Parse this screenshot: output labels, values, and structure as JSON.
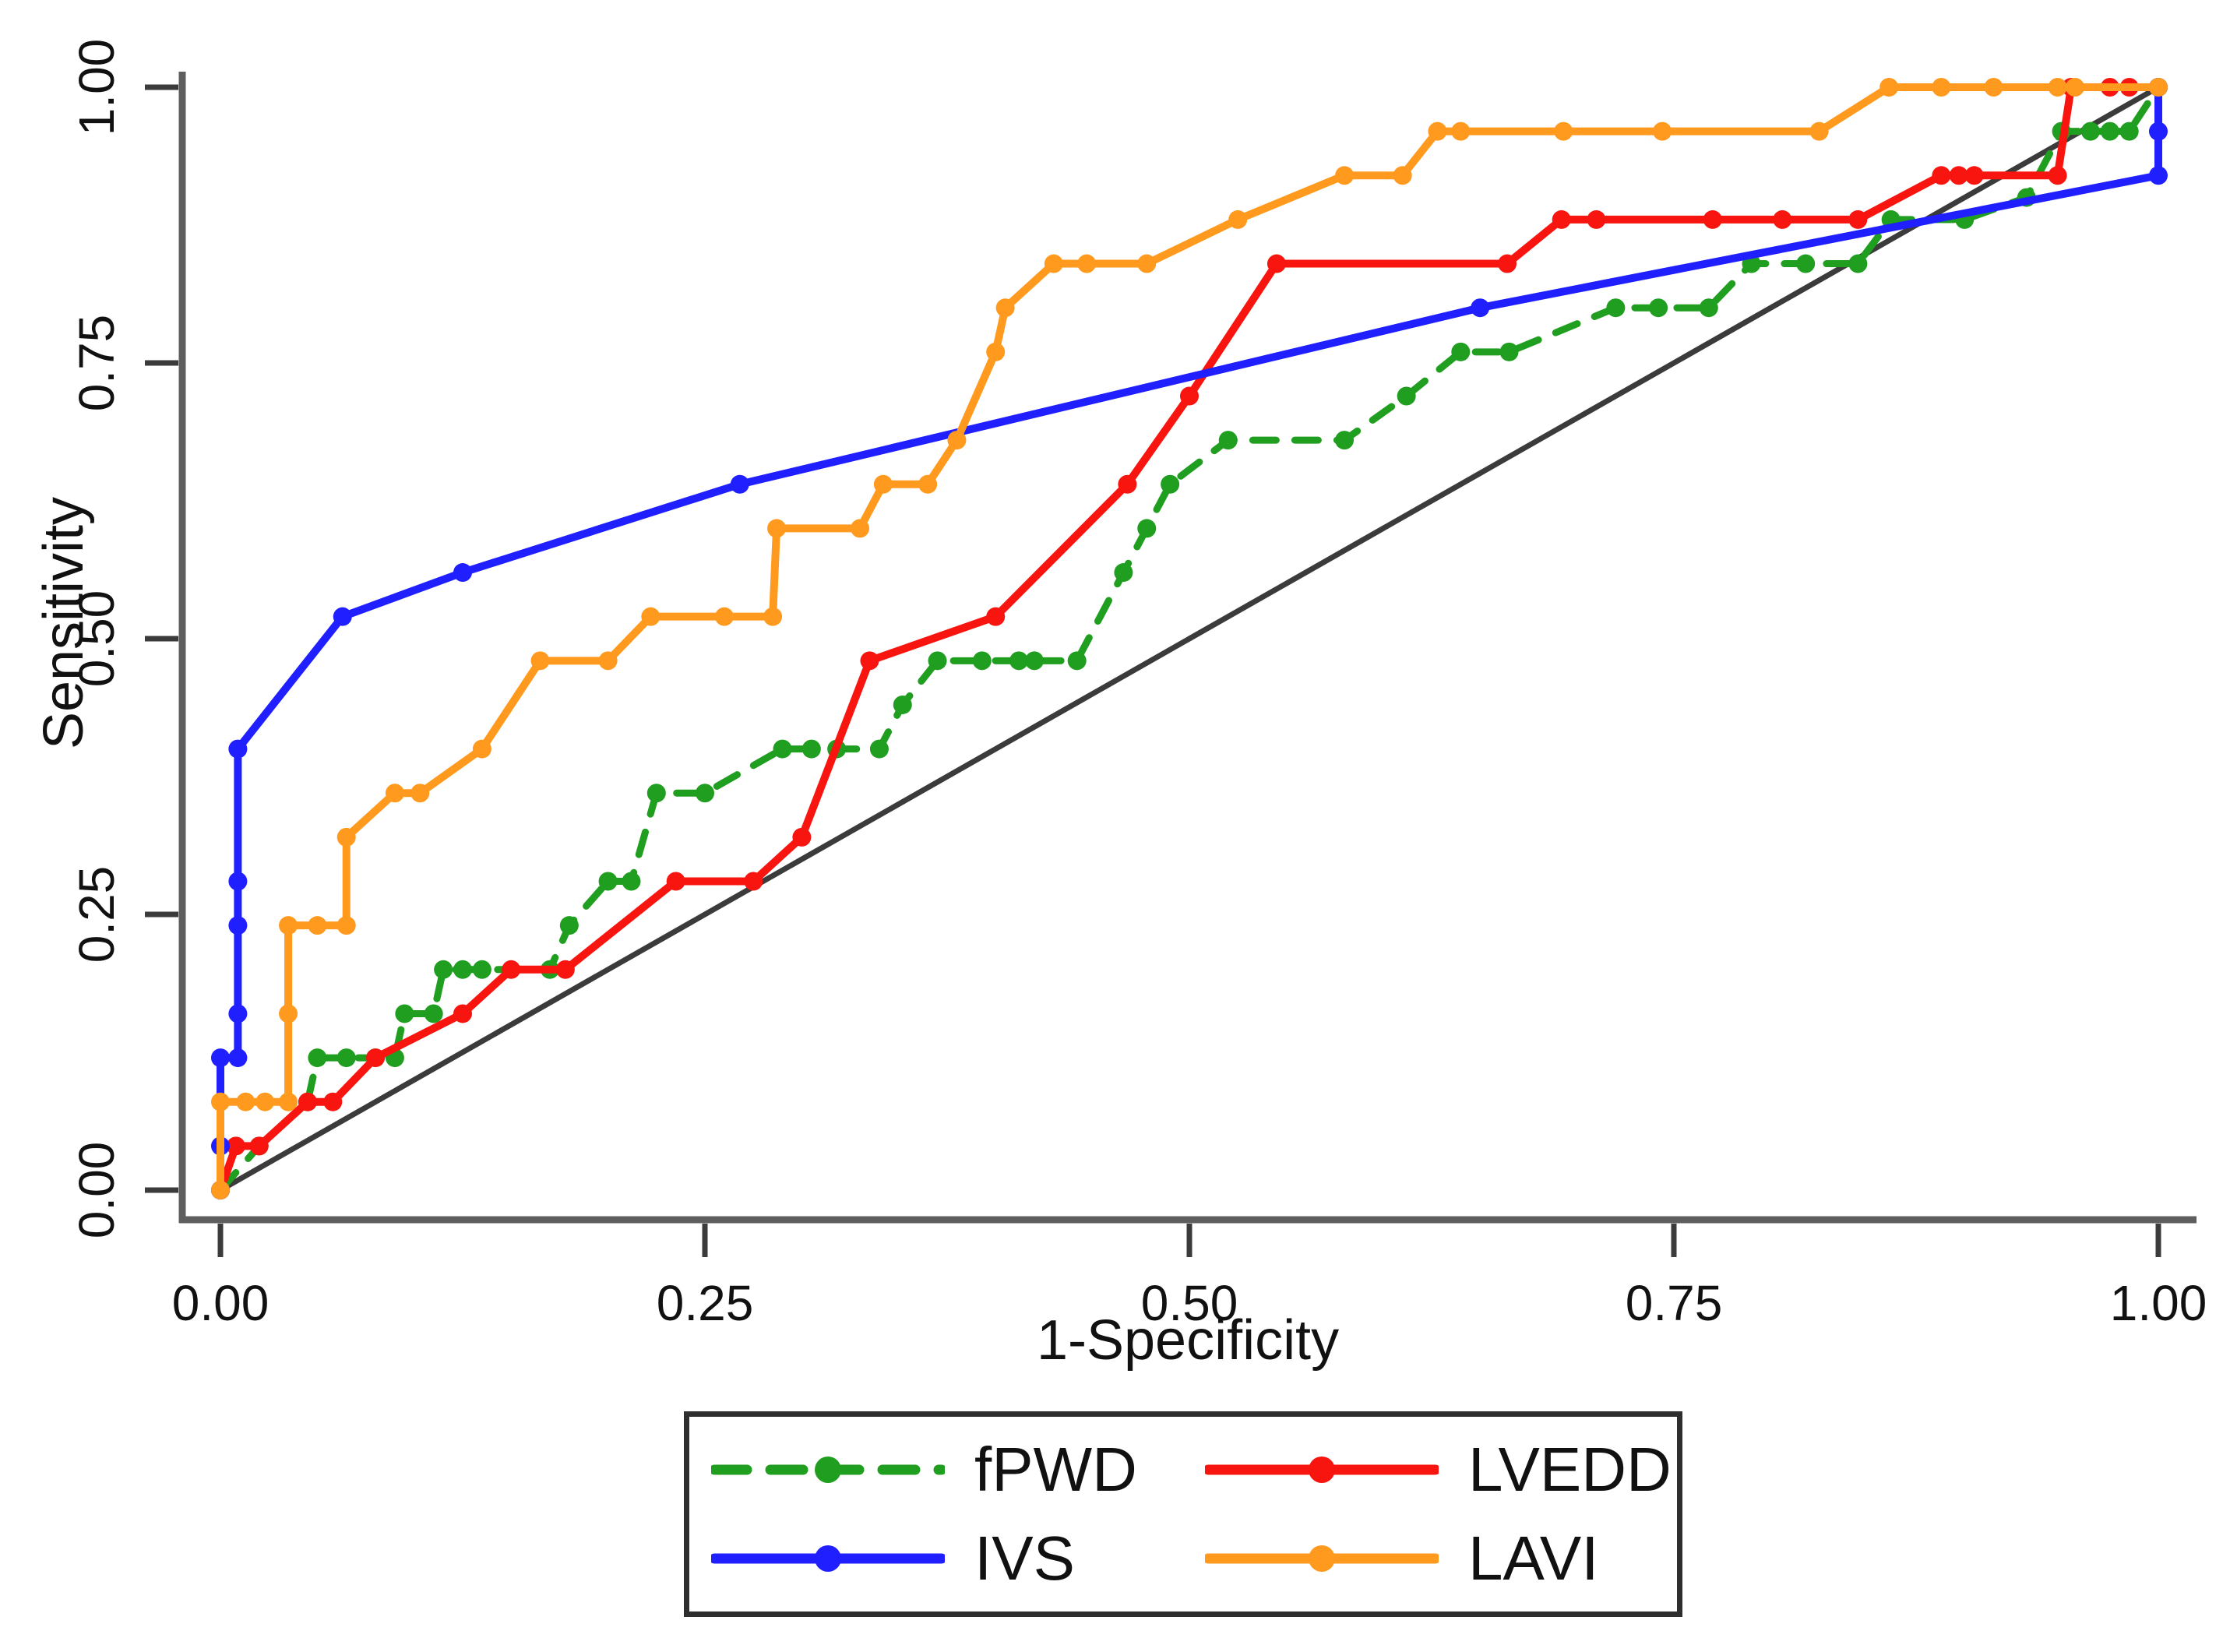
{
  "chart_data": {
    "type": "line",
    "subtype": "roc-curves",
    "title": "",
    "xlabel": "1-Specificity",
    "ylabel": "Sensitivity",
    "xlim": [
      0,
      1
    ],
    "ylim": [
      0,
      1
    ],
    "grid": false,
    "legend_position": "bottom",
    "x_ticks": [
      {
        "v": 0.0,
        "label": "0.00"
      },
      {
        "v": 0.25,
        "label": "0.25"
      },
      {
        "v": 0.5,
        "label": "0.50"
      },
      {
        "v": 0.75,
        "label": "0.75"
      },
      {
        "v": 1.0,
        "label": "1.00"
      }
    ],
    "y_ticks": [
      {
        "v": 0.0,
        "label": "0.00"
      },
      {
        "v": 0.25,
        "label": "0.25"
      },
      {
        "v": 0.5,
        "label": "0.50"
      },
      {
        "v": 0.75,
        "label": "0.75"
      },
      {
        "v": 1.0,
        "label": "1.00"
      }
    ],
    "reference_line": {
      "name": "chance-diagonal",
      "color": "#3b3b3b",
      "points": [
        [
          0,
          0
        ],
        [
          1,
          1
        ]
      ]
    },
    "series": [
      {
        "name": "fPWD",
        "color": "#1f9e1f",
        "dashed": true,
        "points": [
          [
            0,
            0
          ],
          [
            0.02,
            0.04
          ],
          [
            0.045,
            0.08
          ],
          [
            0.05,
            0.12
          ],
          [
            0.065,
            0.12
          ],
          [
            0.08,
            0.12
          ],
          [
            0.09,
            0.12
          ],
          [
            0.095,
            0.16
          ],
          [
            0.11,
            0.16
          ],
          [
            0.115,
            0.2
          ],
          [
            0.125,
            0.2
          ],
          [
            0.135,
            0.2
          ],
          [
            0.17,
            0.2
          ],
          [
            0.18,
            0.24
          ],
          [
            0.2,
            0.28
          ],
          [
            0.212,
            0.28
          ],
          [
            0.225,
            0.36
          ],
          [
            0.25,
            0.36
          ],
          [
            0.29,
            0.4
          ],
          [
            0.305,
            0.4
          ],
          [
            0.318,
            0.4
          ],
          [
            0.34,
            0.4
          ],
          [
            0.352,
            0.44
          ],
          [
            0.37,
            0.48
          ],
          [
            0.393,
            0.48
          ],
          [
            0.412,
            0.48
          ],
          [
            0.42,
            0.48
          ],
          [
            0.442,
            0.48
          ],
          [
            0.466,
            0.56
          ],
          [
            0.478,
            0.6
          ],
          [
            0.49,
            0.64
          ],
          [
            0.52,
            0.68
          ],
          [
            0.58,
            0.68
          ],
          [
            0.612,
            0.72
          ],
          [
            0.64,
            0.76
          ],
          [
            0.665,
            0.76
          ],
          [
            0.72,
            0.8
          ],
          [
            0.742,
            0.8
          ],
          [
            0.768,
            0.8
          ],
          [
            0.79,
            0.84
          ],
          [
            0.818,
            0.84
          ],
          [
            0.845,
            0.84
          ],
          [
            0.862,
            0.88
          ],
          [
            0.9,
            0.88
          ],
          [
            0.932,
            0.9
          ],
          [
            0.95,
            0.96
          ],
          [
            0.965,
            0.96
          ],
          [
            0.975,
            0.96
          ],
          [
            0.985,
            0.96
          ],
          [
            1,
            1
          ]
        ]
      },
      {
        "name": "LVEDD",
        "color": "#f8150f",
        "dashed": false,
        "points": [
          [
            0,
            0
          ],
          [
            0.008,
            0.04
          ],
          [
            0.02,
            0.04
          ],
          [
            0.045,
            0.08
          ],
          [
            0.058,
            0.08
          ],
          [
            0.08,
            0.12
          ],
          [
            0.125,
            0.16
          ],
          [
            0.15,
            0.2
          ],
          [
            0.178,
            0.2
          ],
          [
            0.235,
            0.28
          ],
          [
            0.275,
            0.28
          ],
          [
            0.3,
            0.32
          ],
          [
            0.335,
            0.48
          ],
          [
            0.4,
            0.52
          ],
          [
            0.468,
            0.64
          ],
          [
            0.5,
            0.72
          ],
          [
            0.545,
            0.84
          ],
          [
            0.664,
            0.84
          ],
          [
            0.692,
            0.88
          ],
          [
            0.71,
            0.88
          ],
          [
            0.77,
            0.88
          ],
          [
            0.806,
            0.88
          ],
          [
            0.845,
            0.88
          ],
          [
            0.888,
            0.92
          ],
          [
            0.897,
            0.92
          ],
          [
            0.905,
            0.92
          ],
          [
            0.948,
            0.92
          ],
          [
            0.955,
            1.0
          ],
          [
            0.975,
            1.0
          ],
          [
            0.985,
            1.0
          ],
          [
            1,
            1
          ]
        ]
      },
      {
        "name": "IVS",
        "color": "#1f1fff",
        "dashed": false,
        "points": [
          [
            0,
            0
          ],
          [
            0,
            0.04
          ],
          [
            0,
            0.12
          ],
          [
            0.009,
            0.12
          ],
          [
            0.009,
            0.16
          ],
          [
            0.009,
            0.24
          ],
          [
            0.009,
            0.28
          ],
          [
            0.009,
            0.4
          ],
          [
            0.063,
            0.52
          ],
          [
            0.125,
            0.56
          ],
          [
            0.268,
            0.64
          ],
          [
            0.65,
            0.8
          ],
          [
            1,
            0.92
          ],
          [
            1,
            0.96
          ],
          [
            1,
            1
          ]
        ]
      },
      {
        "name": "LAVI",
        "color": "#ff9a1e",
        "dashed": false,
        "points": [
          [
            0,
            0
          ],
          [
            0,
            0.08
          ],
          [
            0.013,
            0.08
          ],
          [
            0.023,
            0.08
          ],
          [
            0.035,
            0.08
          ],
          [
            0.035,
            0.16
          ],
          [
            0.035,
            0.24
          ],
          [
            0.05,
            0.24
          ],
          [
            0.065,
            0.24
          ],
          [
            0.065,
            0.32
          ],
          [
            0.09,
            0.36
          ],
          [
            0.103,
            0.36
          ],
          [
            0.135,
            0.4
          ],
          [
            0.165,
            0.48
          ],
          [
            0.2,
            0.48
          ],
          [
            0.222,
            0.52
          ],
          [
            0.26,
            0.52
          ],
          [
            0.285,
            0.52
          ],
          [
            0.287,
            0.6
          ],
          [
            0.33,
            0.6
          ],
          [
            0.342,
            0.64
          ],
          [
            0.365,
            0.64
          ],
          [
            0.38,
            0.68
          ],
          [
            0.4,
            0.76
          ],
          [
            0.405,
            0.8
          ],
          [
            0.43,
            0.84
          ],
          [
            0.447,
            0.84
          ],
          [
            0.478,
            0.84
          ],
          [
            0.525,
            0.88
          ],
          [
            0.58,
            0.92
          ],
          [
            0.61,
            0.92
          ],
          [
            0.628,
            0.96
          ],
          [
            0.64,
            0.96
          ],
          [
            0.693,
            0.96
          ],
          [
            0.744,
            0.96
          ],
          [
            0.825,
            0.96
          ],
          [
            0.861,
            1
          ],
          [
            0.888,
            1
          ],
          [
            0.915,
            1
          ],
          [
            0.948,
            1
          ],
          [
            0.957,
            1
          ],
          [
            1,
            1
          ]
        ]
      }
    ],
    "legend_entries": [
      "fPWD",
      "LVEDD",
      "IVS",
      "LAVI"
    ]
  }
}
